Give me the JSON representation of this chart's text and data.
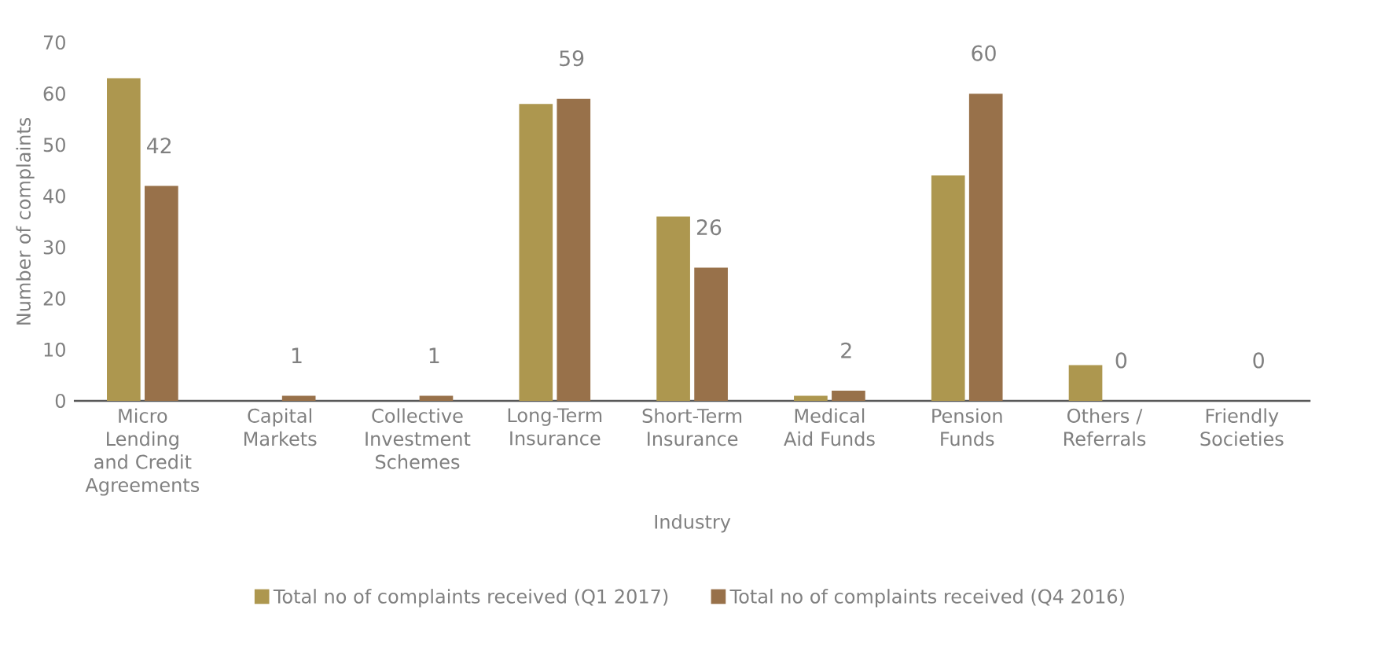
{
  "chart_data": {
    "type": "bar",
    "xlabel": "Industry",
    "ylabel": "Number of complaints",
    "categories": [
      "Micro Lending and Credit Agreements",
      "Capital Markets",
      "Collective Investment Schemes",
      "Long-Term Insurance",
      "Short-Term Insurance",
      "Medical Aid Funds",
      "Pension Funds",
      "Others / Referrals",
      "Friendly Societies"
    ],
    "series": [
      {
        "name": "Total no of complaints received (Q1 2017)",
        "color": "#ad974f",
        "values": [
          63,
          0,
          0,
          58,
          36,
          1,
          44,
          7,
          0
        ]
      },
      {
        "name": "Total no of complaints received (Q4 2016)",
        "color": "#98714a",
        "values": [
          42,
          1,
          1,
          59,
          26,
          2,
          60,
          0,
          0
        ],
        "value_labels": [
          "42",
          "1",
          "1",
          "59",
          "26",
          "2",
          "60",
          "0",
          "0"
        ]
      }
    ],
    "ylim": [
      0,
      70
    ],
    "yticks": [
      0,
      10,
      20,
      30,
      40,
      50,
      60,
      70
    ],
    "grid": false,
    "legend": "bottom"
  }
}
